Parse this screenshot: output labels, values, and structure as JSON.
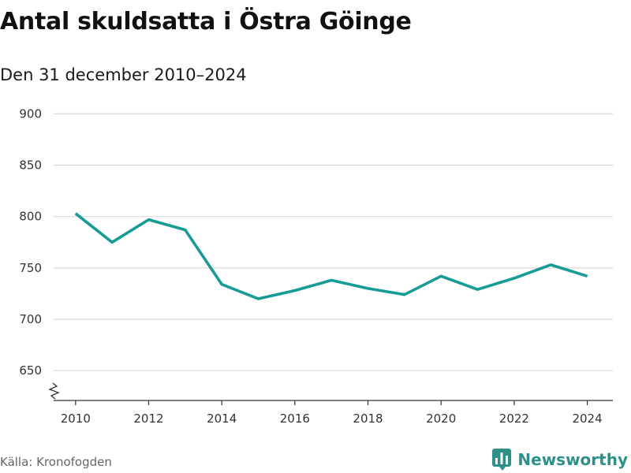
{
  "header": {
    "title": "Antal skuldsatta i Östra Göinge",
    "subtitle": "Den 31 december 2010–2024"
  },
  "footer": {
    "source": "Källa: Kronofogden",
    "brand": "Newsworthy",
    "brand_icon": "bar-chart-logo-icon"
  },
  "colors": {
    "line": "#169b95",
    "grid": "#d9d9d9",
    "axis": "#333333",
    "brand": "#2f8f89"
  },
  "chart_data": {
    "type": "line",
    "title": "Antal skuldsatta i Östra Göinge",
    "subtitle": "Den 31 december 2010–2024",
    "xlabel": "",
    "ylabel": "",
    "x": [
      2010,
      2011,
      2012,
      2013,
      2014,
      2015,
      2016,
      2017,
      2018,
      2019,
      2020,
      2021,
      2022,
      2023,
      2024
    ],
    "series": [
      {
        "values": [
          803,
          775,
          797,
          787,
          734,
          720,
          728,
          738,
          730,
          724,
          742,
          729,
          740,
          753,
          742
        ]
      }
    ],
    "xticks": [
      2010,
      2012,
      2014,
      2016,
      2018,
      2020,
      2022,
      2024
    ],
    "yticks": [
      650,
      700,
      750,
      800,
      850,
      900
    ],
    "xlim": [
      2009.4,
      2024.7
    ],
    "ylim": [
      621,
      911
    ],
    "y_axis_break": true,
    "grid": "horizontal",
    "legend": "none"
  }
}
